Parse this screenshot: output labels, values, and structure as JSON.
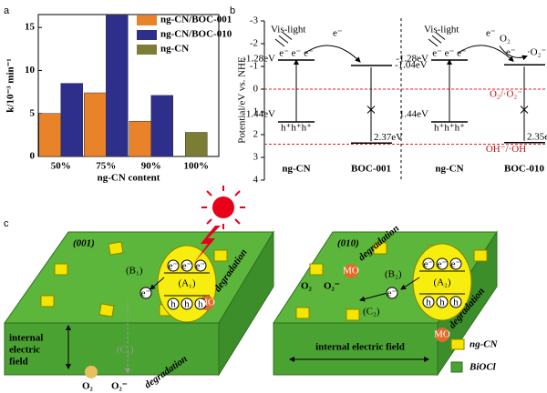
{
  "chart_data": {
    "type": "bar",
    "ylabel": "k/10⁻³ min⁻¹",
    "xlabel": "ng-CN content",
    "categories": [
      "50%",
      "75%",
      "90%",
      "100%"
    ],
    "series": [
      {
        "name": "ng-CN/BOC-001",
        "color": "#e8832a",
        "values": [
          5.0,
          7.4,
          4.1,
          null
        ]
      },
      {
        "name": "ng-CN/BOC-010",
        "color": "#2e2f8a",
        "values": [
          8.5,
          16.4,
          7.1,
          null
        ]
      },
      {
        "name": "ng-CN",
        "color": "#7b7d35",
        "values": [
          null,
          null,
          null,
          2.8
        ]
      }
    ],
    "ylim": [
      0,
      16.5
    ],
    "yticks": [
      0,
      5,
      10,
      15
    ],
    "legend": "upper right"
  },
  "panel_labels": [
    "a",
    "b",
    "c"
  ],
  "panel_b": {
    "ylabel": "Potential/eV vs. NHE",
    "yticks": [
      -3,
      -2,
      -1,
      0,
      1,
      2,
      3,
      4
    ],
    "redox_o2": "O₂/·O₂⁻",
    "redox_oh": "OH⁻/·OH",
    "left": {
      "light": "Vis-light",
      "cb_ng": "-1.28eV",
      "electrons": "e⁻ e⁻ e⁻",
      "e": "e⁻",
      "cb_boc": "-1.04eV",
      "vb_ng": "1.44eV",
      "holes": "h⁺h⁺h⁺",
      "vb_boc": "2.37eV",
      "ng": "ng-CN",
      "boc": "BOC-001"
    },
    "right": {
      "light": "Vis-light",
      "cb_ng": "-1.28eV",
      "electrons": "e⁻ e⁻ e⁻",
      "e": "e⁻",
      "o2": "O₂",
      "o2r": "·O₂⁻",
      "cb_boc": "-1.07eV",
      "vb_ng": "1.44eV",
      "holes": "h⁺h⁺h⁺",
      "vb_boc": "2.35eV",
      "ng": "ng-CN",
      "boc": "BOC-010"
    }
  },
  "panel_c": {
    "electron": "e⁻",
    "hole": "h",
    "mo": "MO",
    "degradation": "degradation",
    "o2": "O₂",
    "o2r": "O₂⁻",
    "left": {
      "facet": "(001)",
      "a": "(A₁)",
      "b": "(B₁)",
      "c": "(C₁)",
      "field": [
        "internal",
        "electric",
        "field"
      ]
    },
    "right": {
      "facet": "(010)",
      "a": "(A₂)",
      "b": "(B₂)",
      "c": "(C₂)",
      "field": "internal electric field"
    },
    "legend": {
      "ng": "ng-CN",
      "boc": "BiOCl"
    }
  }
}
